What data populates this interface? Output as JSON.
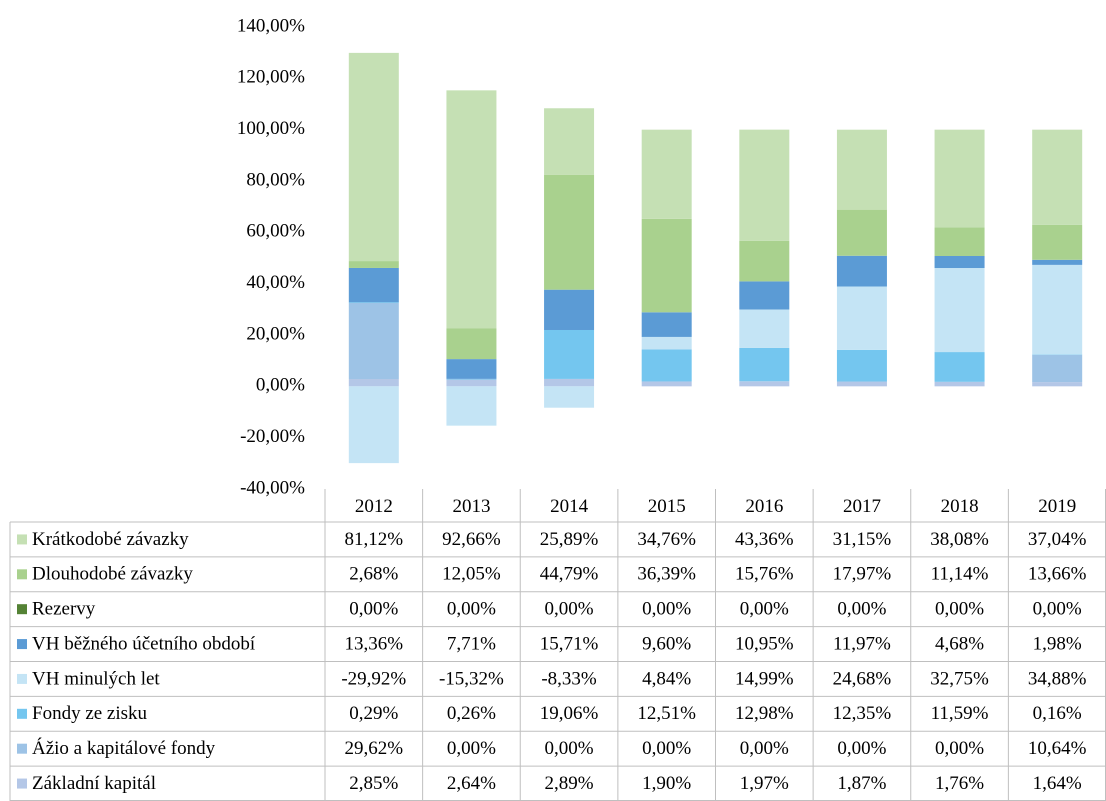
{
  "chart_data": {
    "type": "stacked_bar",
    "categories": [
      "2012",
      "2013",
      "2014",
      "2015",
      "2016",
      "2017",
      "2018",
      "2019"
    ],
    "ylim": [
      -40,
      140
    ],
    "yticks": [
      {
        "value": -40,
        "label": "-40,00%"
      },
      {
        "value": -20,
        "label": "-20,00%"
      },
      {
        "value": 0,
        "label": "0,00%"
      },
      {
        "value": 20,
        "label": "20,00%"
      },
      {
        "value": 40,
        "label": "40,00%"
      },
      {
        "value": 60,
        "label": "60,00%"
      },
      {
        "value": 80,
        "label": "80,00%"
      },
      {
        "value": 100,
        "label": "100,00%"
      },
      {
        "value": 120,
        "label": "120,00%"
      },
      {
        "value": 140,
        "label": "140,00%"
      }
    ],
    "grid": false,
    "series": [
      {
        "name": "Krátkodobé závazky",
        "color": "#c5e0b4",
        "values": [
          81.12,
          92.66,
          25.89,
          34.76,
          43.36,
          31.15,
          38.08,
          37.04
        ],
        "value_labels": [
          "81,12%",
          "92,66%",
          "25,89%",
          "34,76%",
          "43,36%",
          "31,15%",
          "38,08%",
          "37,04%"
        ]
      },
      {
        "name": "Dlouhodobé závazky",
        "color": "#a9d18e",
        "values": [
          2.68,
          12.05,
          44.79,
          36.39,
          15.76,
          17.97,
          11.14,
          13.66
        ],
        "value_labels": [
          "2,68%",
          "12,05%",
          "44,79%",
          "36,39%",
          "15,76%",
          "17,97%",
          "11,14%",
          "13,66%"
        ]
      },
      {
        "name": "Rezervy",
        "color": "#548235",
        "values": [
          0,
          0,
          0,
          0,
          0,
          0,
          0,
          0
        ],
        "value_labels": [
          "0,00%",
          "0,00%",
          "0,00%",
          "0,00%",
          "0,00%",
          "0,00%",
          "0,00%",
          "0,00%"
        ]
      },
      {
        "name": "VH běžného účetního období",
        "color": "#5b9bd5",
        "values": [
          13.36,
          7.71,
          15.71,
          9.6,
          10.95,
          11.97,
          4.68,
          1.98
        ],
        "value_labels": [
          "13,36%",
          "7,71%",
          "15,71%",
          "9,60%",
          "10,95%",
          "11,97%",
          "4,68%",
          "1,98%"
        ]
      },
      {
        "name": "VH minulých let",
        "color": "#c4e4f5",
        "values": [
          -29.92,
          -15.32,
          -8.33,
          4.84,
          14.99,
          24.68,
          32.75,
          34.88
        ],
        "value_labels": [
          "-29,92%",
          "-15,32%",
          "-8,33%",
          "4,84%",
          "14,99%",
          "24,68%",
          "32,75%",
          "34,88%"
        ]
      },
      {
        "name": "Fondy ze zisku",
        "color": "#74c6ef",
        "values": [
          0.29,
          0.26,
          19.06,
          12.51,
          12.98,
          12.35,
          11.59,
          0.16
        ],
        "value_labels": [
          "0,29%",
          "0,26%",
          "19,06%",
          "12,51%",
          "12,98%",
          "12,35%",
          "11,59%",
          "0,16%"
        ]
      },
      {
        "name": "Ážio a kapitálové fondy",
        "color": "#9dc3e6",
        "values": [
          29.62,
          0,
          0,
          0,
          0,
          0,
          0,
          10.64
        ],
        "value_labels": [
          "29,62%",
          "0,00%",
          "0,00%",
          "0,00%",
          "0,00%",
          "0,00%",
          "0,00%",
          "10,64%"
        ]
      },
      {
        "name": "Základní kapitál",
        "color": "#b4c7e7",
        "values": [
          2.85,
          2.64,
          2.89,
          1.9,
          1.97,
          1.87,
          1.76,
          1.64
        ],
        "value_labels": [
          "2,85%",
          "2,64%",
          "2,89%",
          "1,90%",
          "1,97%",
          "1,87%",
          "1,76%",
          "1,64%"
        ]
      }
    ]
  }
}
